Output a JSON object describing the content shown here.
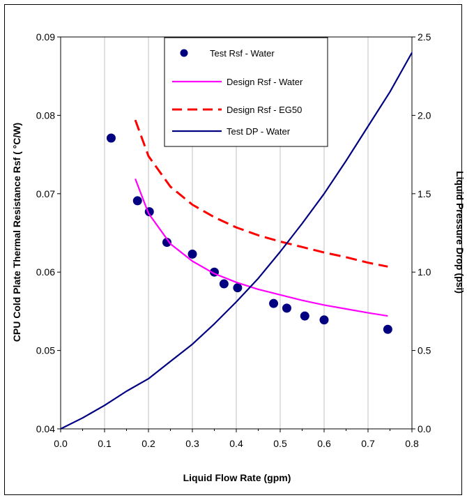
{
  "chart_data": {
    "type": "scatter",
    "xlabel": "Liquid Flow Rate (gpm)",
    "ylabel_left": "CPU Cold Plate Thermal Resistance Rsf ( °C/W)",
    "ylabel_right": "Liquid Pressure Drop (psi)",
    "xlim": [
      0.0,
      0.8
    ],
    "ylim_left": [
      0.04,
      0.09
    ],
    "ylim_right": [
      0.0,
      2.5
    ],
    "x_ticks": [
      "0.0",
      "0.1",
      "0.2",
      "0.3",
      "0.4",
      "0.5",
      "0.6",
      "0.7",
      "0.8"
    ],
    "y_ticks_left": [
      "0.04",
      "0.05",
      "0.06",
      "0.07",
      "0.08",
      "0.09"
    ],
    "y_ticks_right": [
      "0.0",
      "0.5",
      "1.0",
      "1.5",
      "2.0",
      "2.5"
    ],
    "grid": "vertical",
    "legend_position": "top-center",
    "series": [
      {
        "name": "Test Rsf - Water",
        "kind": "markers",
        "axis": "left",
        "color": "#000080",
        "x": [
          0.115,
          0.175,
          0.202,
          0.242,
          0.3,
          0.35,
          0.372,
          0.403,
          0.485,
          0.515,
          0.556,
          0.6,
          0.745
        ],
        "y": [
          0.0771,
          0.0691,
          0.0677,
          0.0638,
          0.0623,
          0.06,
          0.0585,
          0.058,
          0.056,
          0.0554,
          0.0544,
          0.0539,
          0.0527
        ]
      },
      {
        "name": "Design Rsf - Water",
        "kind": "line",
        "axis": "left",
        "color": "#ff00ff",
        "dash": "solid",
        "x": [
          0.17,
          0.2,
          0.25,
          0.3,
          0.35,
          0.4,
          0.45,
          0.5,
          0.55,
          0.6,
          0.65,
          0.7,
          0.745
        ],
        "y": [
          0.0719,
          0.0675,
          0.0636,
          0.0614,
          0.0598,
          0.0587,
          0.0578,
          0.0571,
          0.0564,
          0.0558,
          0.0553,
          0.0548,
          0.0544
        ]
      },
      {
        "name": "Design Rsf - EG50",
        "kind": "line",
        "axis": "left",
        "color": "#ff0000",
        "dash": "dashed",
        "x": [
          0.17,
          0.2,
          0.25,
          0.3,
          0.35,
          0.4,
          0.45,
          0.5,
          0.55,
          0.6,
          0.65,
          0.7,
          0.745
        ],
        "y": [
          0.0794,
          0.0748,
          0.0709,
          0.0686,
          0.067,
          0.0657,
          0.0647,
          0.0639,
          0.0632,
          0.0625,
          0.0619,
          0.0612,
          0.0607
        ]
      },
      {
        "name": "Test DP - Water",
        "kind": "line",
        "axis": "right",
        "color": "#000080",
        "dash": "solid",
        "x": [
          0.0,
          0.05,
          0.1,
          0.15,
          0.2,
          0.25,
          0.3,
          0.35,
          0.4,
          0.45,
          0.5,
          0.55,
          0.6,
          0.65,
          0.7,
          0.75,
          0.8
        ],
        "y": [
          0.0,
          0.07,
          0.15,
          0.24,
          0.32,
          0.43,
          0.54,
          0.67,
          0.81,
          0.96,
          1.13,
          1.31,
          1.5,
          1.71,
          1.93,
          2.15,
          2.4
        ]
      }
    ]
  }
}
